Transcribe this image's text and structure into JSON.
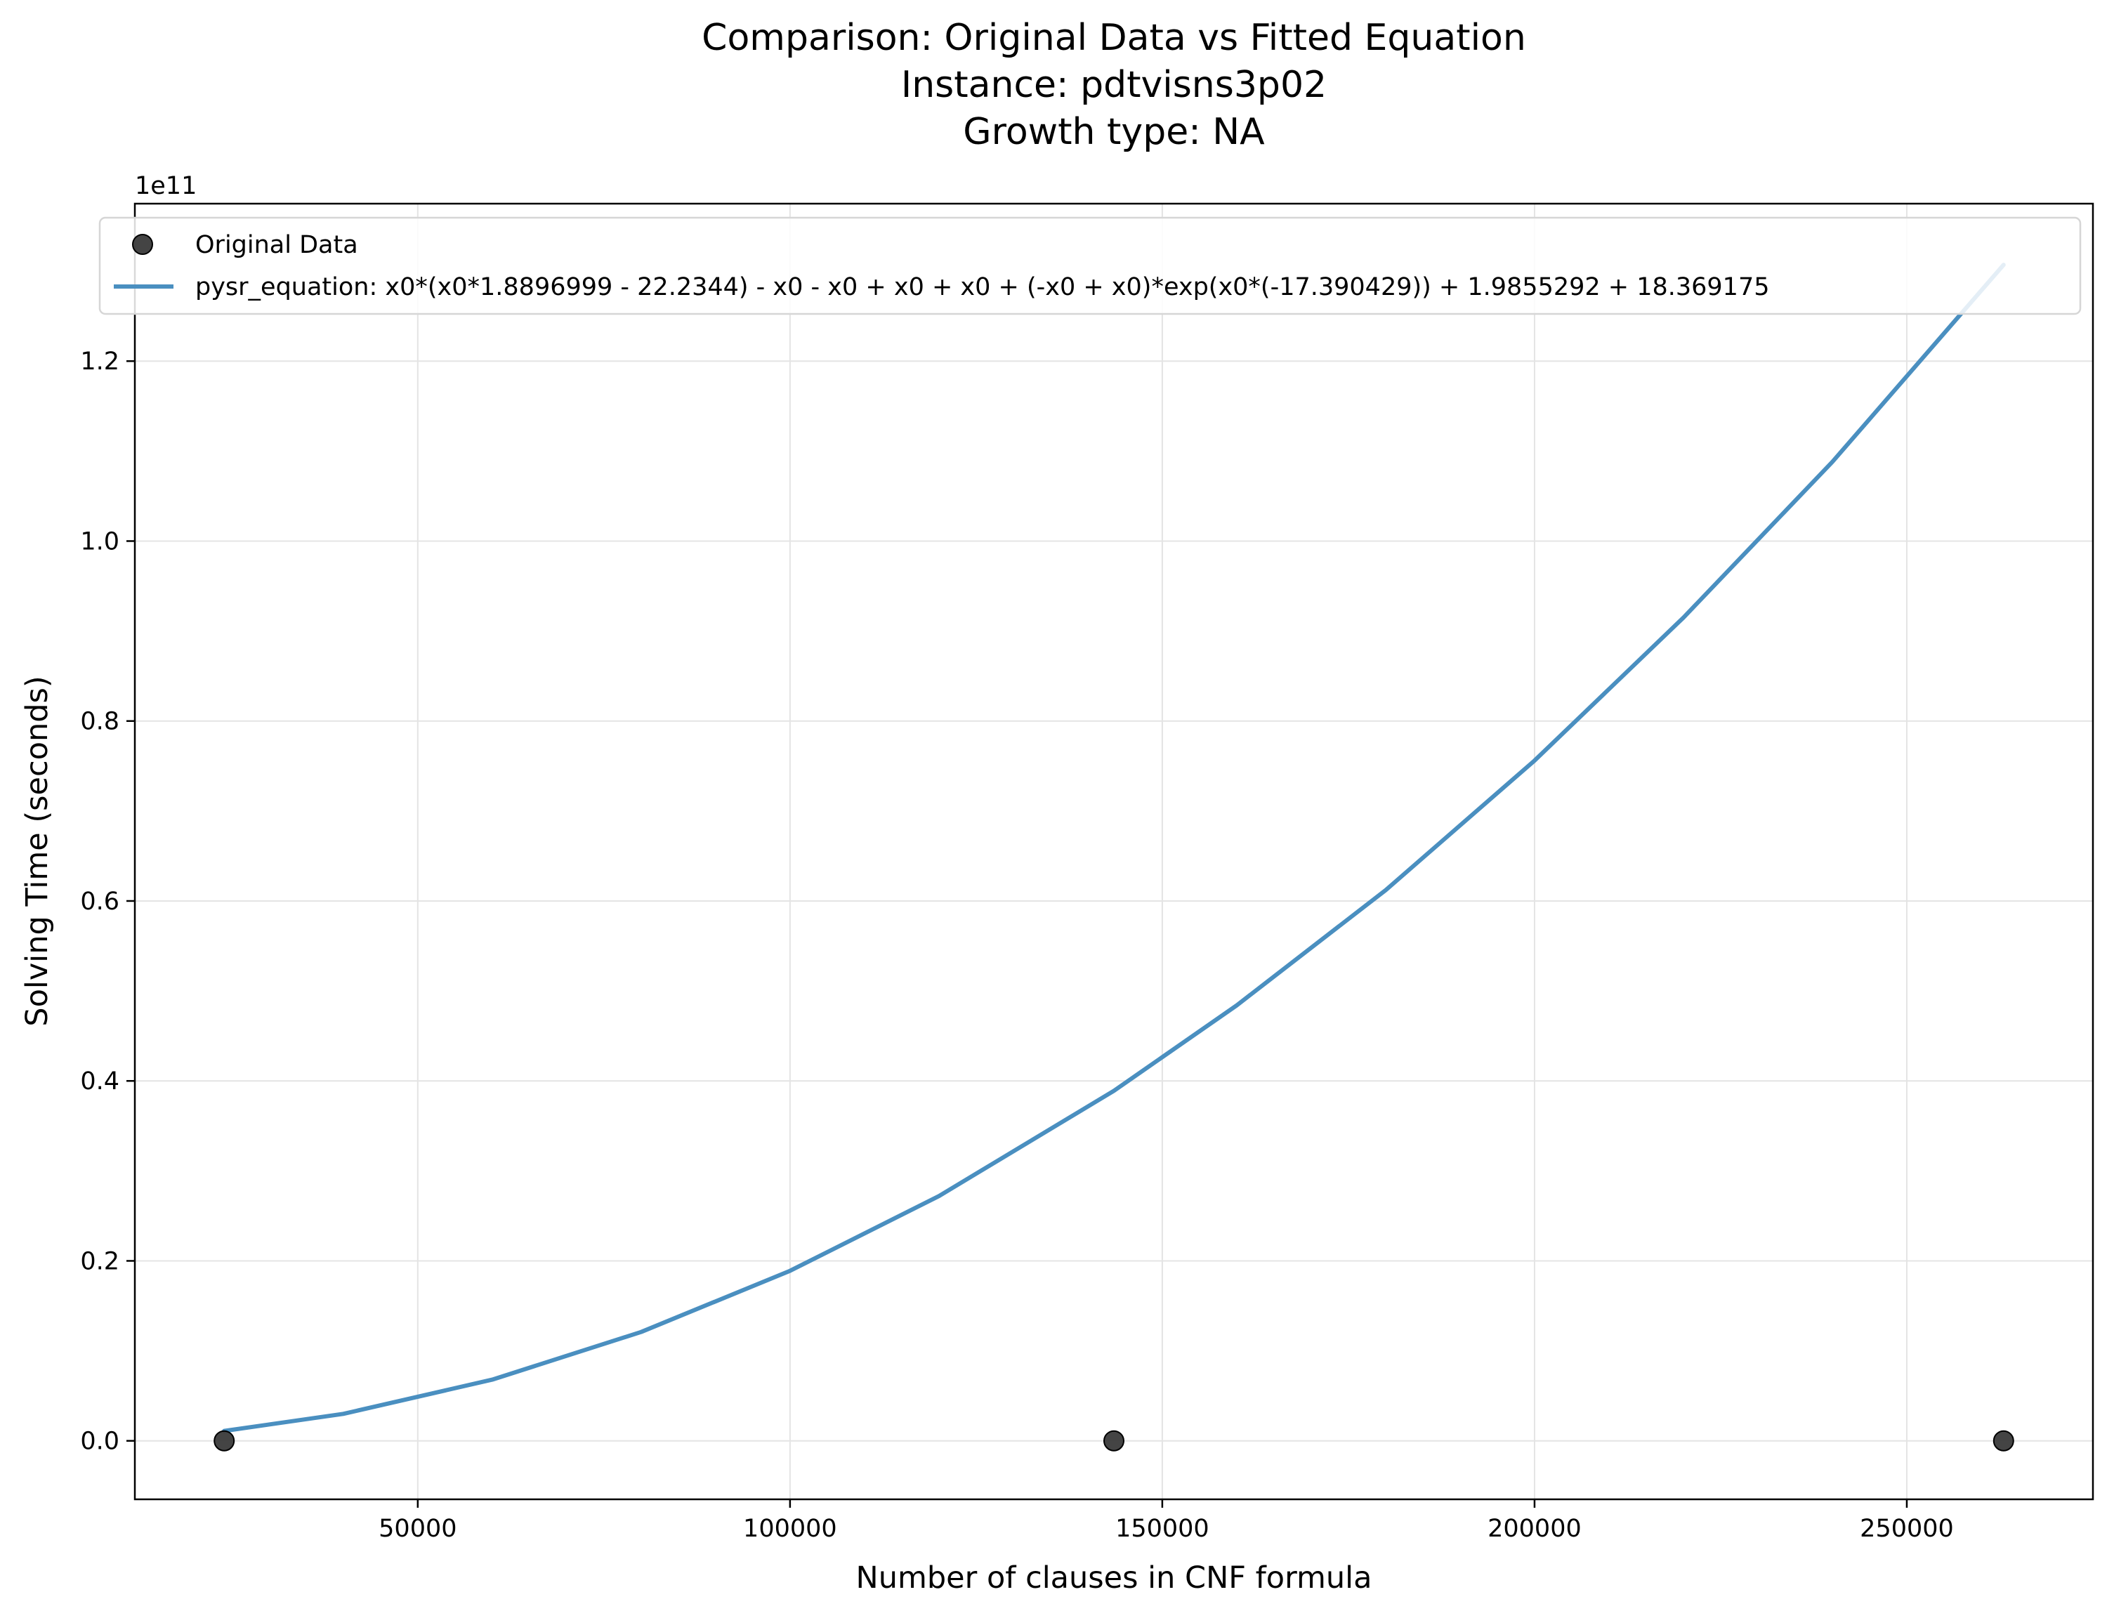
{
  "chart_data": {
    "type": "scatter",
    "title_lines": [
      "Comparison: Original Data vs Fitted Equation",
      "Instance: pdtvisns3p02",
      "Growth type: NA"
    ],
    "xlabel": "Number of clauses in CNF formula",
    "ylabel": "Solving Time (seconds)",
    "y_offset_label": "1e11",
    "y_scale_factor": 100000000000,
    "xlim": [
      12000,
      275000
    ],
    "ylim": [
      -0.065,
      1.375
    ],
    "x_ticks": [
      50000,
      100000,
      150000,
      200000,
      250000
    ],
    "x_tick_labels": [
      "50000",
      "100000",
      "150000",
      "200000",
      "250000"
    ],
    "y_ticks": [
      0.0,
      0.2,
      0.4,
      0.6,
      0.8,
      1.0,
      1.2
    ],
    "y_tick_labels": [
      "0.0",
      "0.2",
      "0.4",
      "0.6",
      "0.8",
      "1.0",
      "1.2"
    ],
    "grid": true,
    "legend_position": "top-left",
    "series": [
      {
        "name": "Original Data",
        "kind": "scatter",
        "color": "#3a3a3a",
        "x": [
          24000,
          143500,
          263000
        ],
        "y": [
          0.0,
          0.0,
          0.0
        ]
      },
      {
        "name": "pysr_equation: x0*(x0*1.8896999 - 22.2344) - x0 - x0 + x0 + x0 + (-x0 + x0)*exp(x0*(-17.390429)) + 1.9855292 + 18.369175",
        "kind": "line",
        "color": "#4a8fc0",
        "x": [
          24000,
          40000,
          60000,
          80000,
          100000,
          120000,
          143500,
          160000,
          180000,
          200000,
          220000,
          240000,
          263000
        ],
        "y": [
          0.011,
          0.03,
          0.068,
          0.121,
          0.189,
          0.272,
          0.389,
          0.484,
          0.612,
          0.756,
          0.915,
          1.088,
          1.307
        ]
      }
    ]
  }
}
